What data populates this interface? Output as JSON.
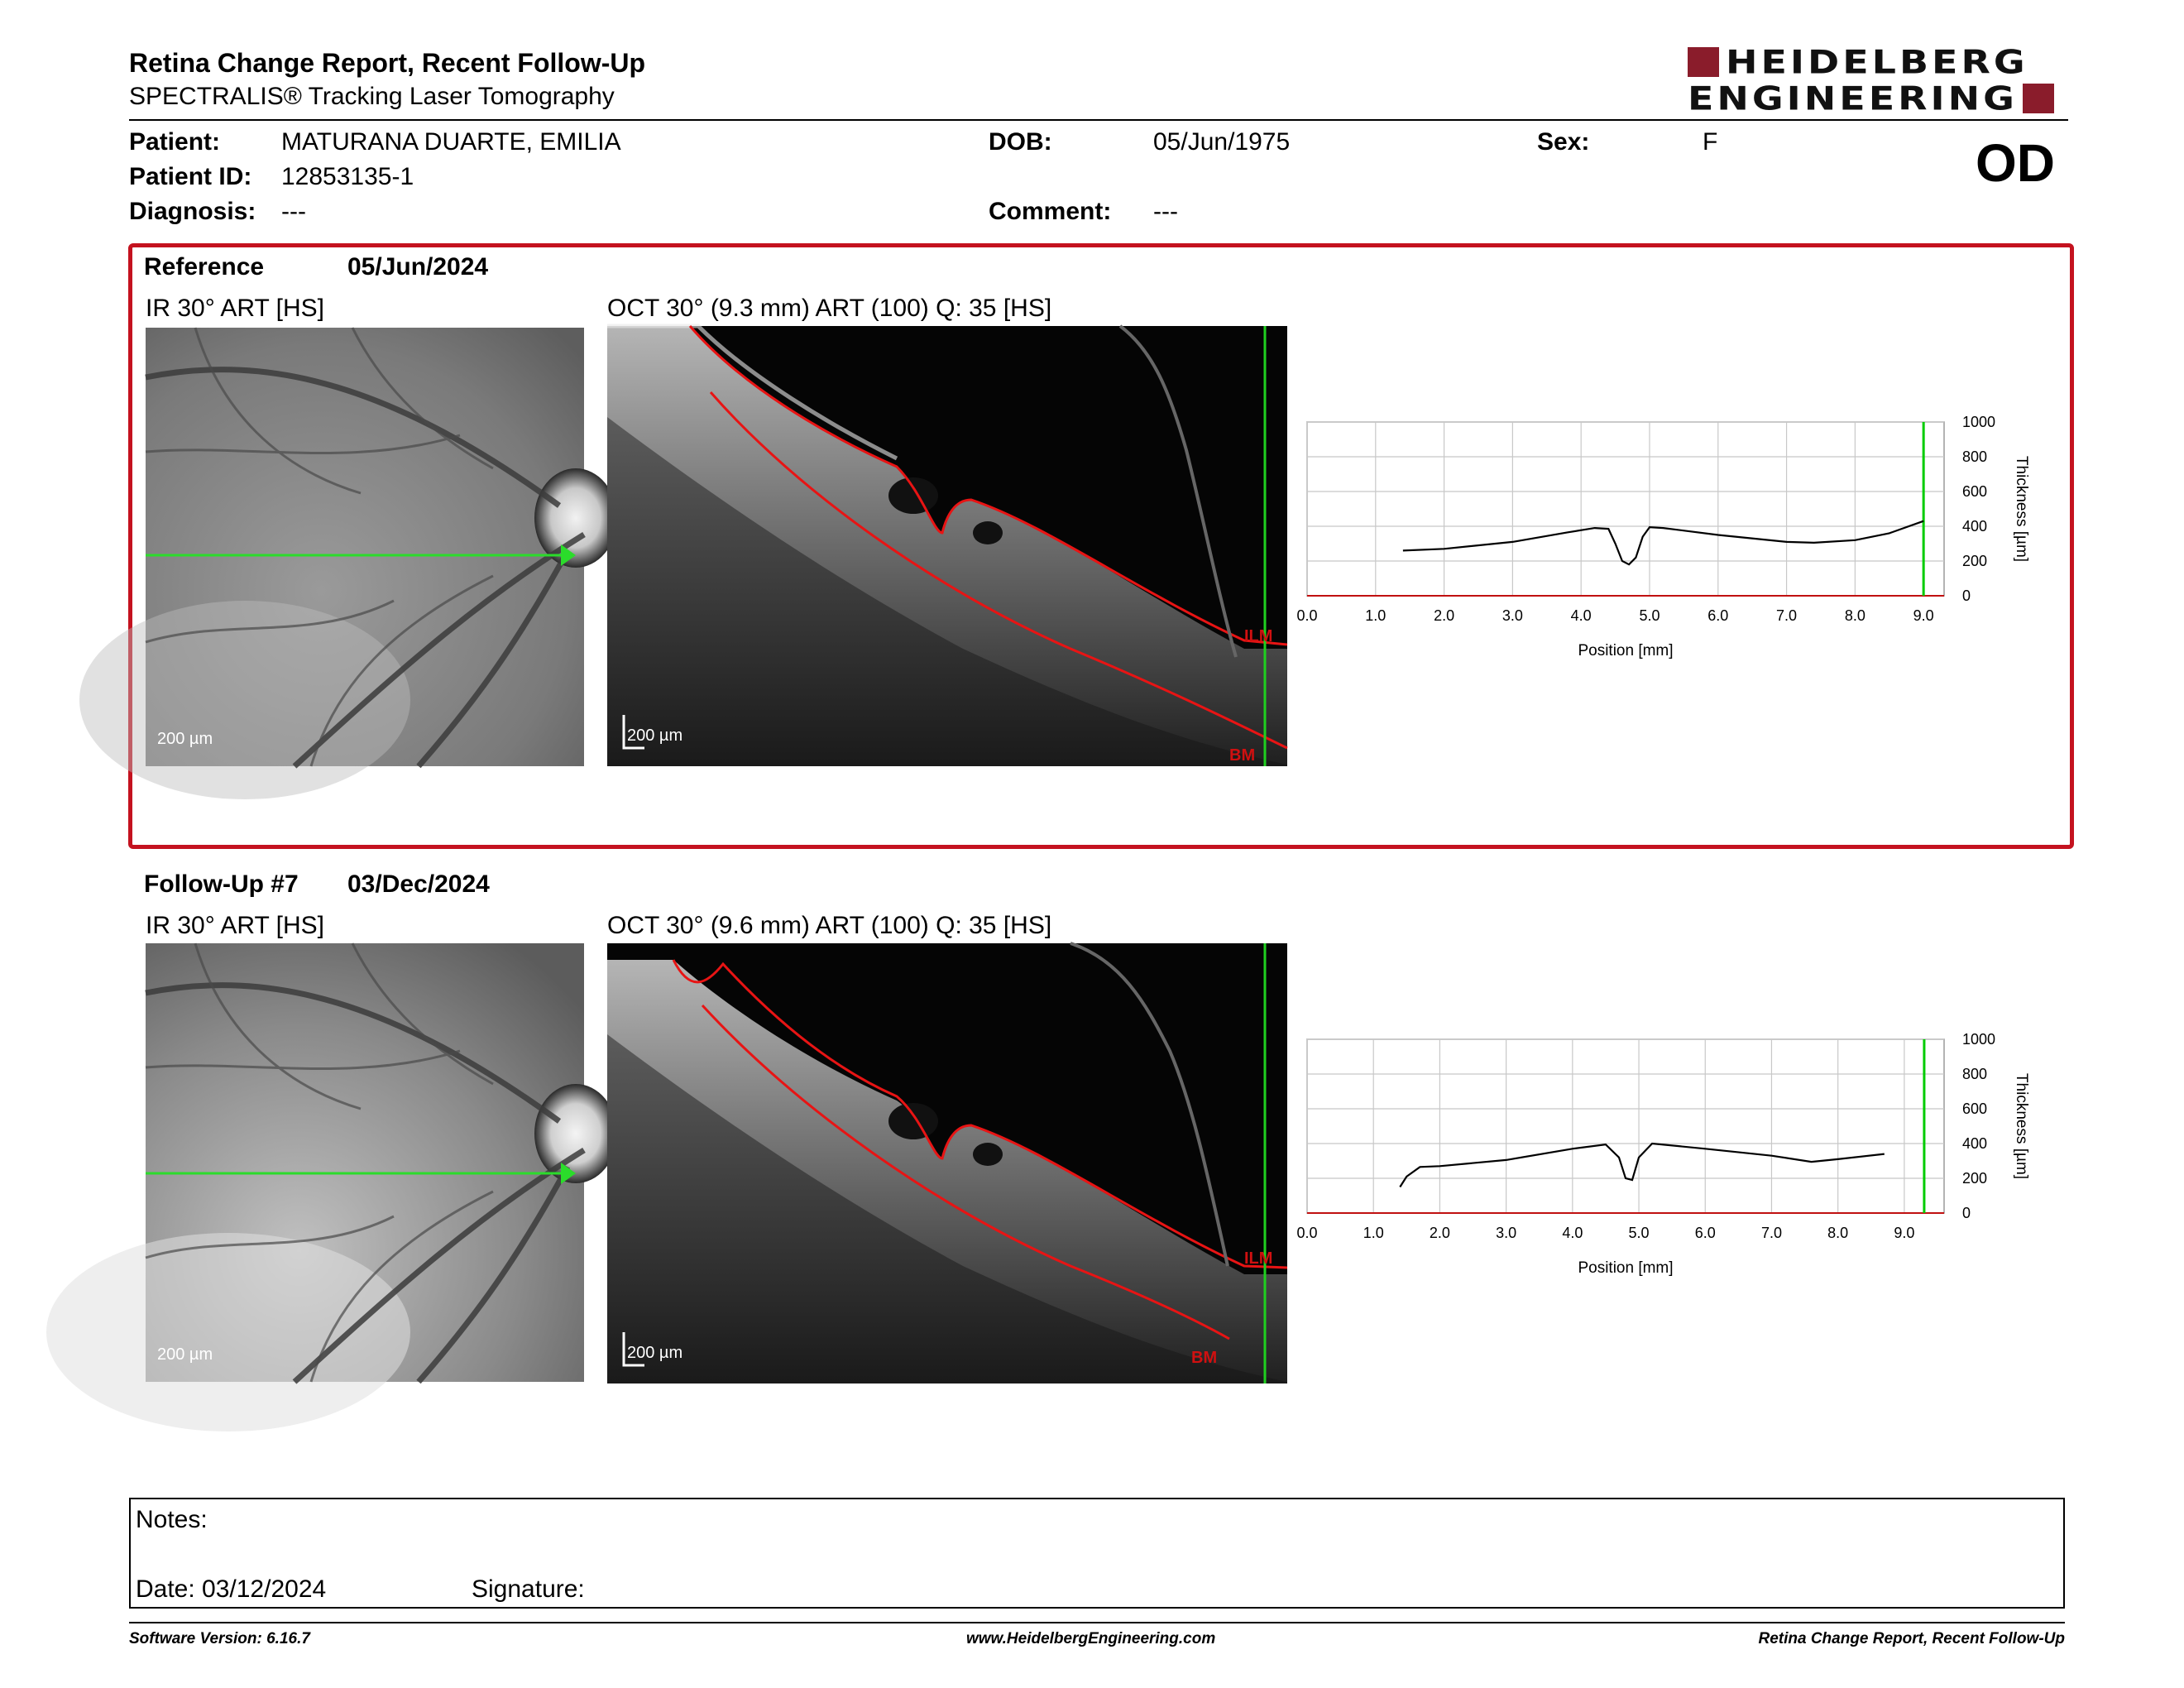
{
  "header": {
    "title": "Retina Change Report, Recent Follow-Up",
    "subtitle": "SPECTRALIS® Tracking Laser Tomography",
    "logo_line1": "HEIDELBERG",
    "logo_line2": "ENGINEERING",
    "brand_color": "#8a1c2b"
  },
  "patient": {
    "patient_label": "Patient:",
    "patient_value": "MATURANA DUARTE, EMILIA",
    "id_label": "Patient ID:",
    "id_value": "12853135-1",
    "diagnosis_label": "Diagnosis:",
    "diagnosis_value": "---",
    "dob_label": "DOB:",
    "dob_value": "05/Jun/1975",
    "comment_label": "Comment:",
    "comment_value": "---",
    "sex_label": "Sex:",
    "sex_value": "F",
    "eye": "OD"
  },
  "reference": {
    "label": "Reference",
    "date": "05/Jun/2024",
    "ir_caption": "IR 30° ART [HS]",
    "ir_scale": "200 µm",
    "oct_caption": "OCT 30° (9.3 mm) ART (100) Q: 35 [HS]",
    "oct_scale": "200 µm",
    "ilm_label": "ILM",
    "bm_label": "BM",
    "frame_color": "#c4121f"
  },
  "followup": {
    "label": "Follow-Up #7",
    "date": "03/Dec/2024",
    "ir_caption": "IR 30° ART [HS]",
    "ir_scale": "200 µm",
    "oct_caption": "OCT 30° (9.6 mm) ART (100) Q: 35 [HS]",
    "oct_scale": "200 µm",
    "ilm_label": "ILM",
    "bm_label": "BM"
  },
  "chart_data": [
    {
      "type": "line",
      "xlabel": "Position [mm]",
      "ylabel": "Thickness [µm]",
      "xlim": [
        0,
        9.3
      ],
      "ylim": [
        0,
        1000
      ],
      "xticks": [
        "0.0",
        "1.0",
        "2.0",
        "3.0",
        "4.0",
        "5.0",
        "6.0",
        "7.0",
        "8.0",
        "9.0"
      ],
      "yticks": [
        "0",
        "200",
        "400",
        "600",
        "800",
        "1000"
      ],
      "grid": true,
      "marker_x": 9.0,
      "marker_color": "#00cc00",
      "x": [
        1.4,
        2.0,
        3.0,
        3.8,
        4.2,
        4.4,
        4.5,
        4.6,
        4.7,
        4.8,
        4.9,
        5.0,
        5.2,
        6.0,
        7.0,
        7.4,
        8.0,
        8.5,
        9.0
      ],
      "y": [
        260,
        270,
        310,
        365,
        390,
        385,
        300,
        200,
        180,
        220,
        340,
        395,
        390,
        350,
        310,
        305,
        320,
        360,
        430
      ]
    },
    {
      "type": "line",
      "xlabel": "Position [mm]",
      "ylabel": "Thickness [µm]",
      "xlim": [
        0,
        9.6
      ],
      "ylim": [
        0,
        1000
      ],
      "xticks": [
        "0.0",
        "1.0",
        "2.0",
        "3.0",
        "4.0",
        "5.0",
        "6.0",
        "7.0",
        "8.0",
        "9.0"
      ],
      "yticks": [
        "0",
        "200",
        "400",
        "600",
        "800",
        "1000"
      ],
      "grid": true,
      "marker_x": 9.3,
      "marker_color": "#00cc00",
      "x": [
        1.4,
        1.5,
        1.7,
        2.0,
        3.0,
        4.0,
        4.5,
        4.7,
        4.8,
        4.9,
        5.0,
        5.2,
        6.0,
        7.0,
        7.6,
        8.0,
        8.7
      ],
      "y": [
        150,
        210,
        265,
        270,
        305,
        370,
        395,
        320,
        200,
        190,
        320,
        400,
        370,
        330,
        295,
        310,
        340
      ]
    }
  ],
  "notes": {
    "notes_label": "Notes:",
    "date_label": "Date: 03/12/2024",
    "signature_label": "Signature:"
  },
  "footer": {
    "software": "Software Version: 6.16.7",
    "website": "www.HeidelbergEngineering.com",
    "report_name": "Retina Change Report, Recent Follow-Up"
  }
}
